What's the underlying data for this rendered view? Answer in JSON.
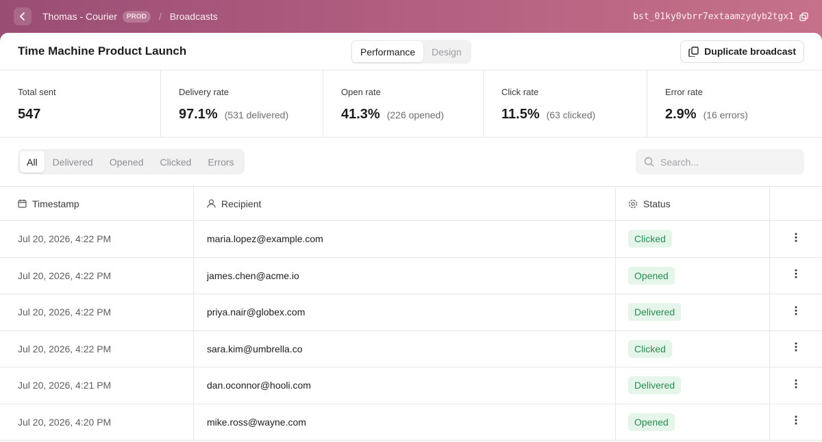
{
  "header": {
    "workspace": "Thomas - Courier",
    "env": "PROD",
    "section": "Broadcasts",
    "broadcast_id": "bst_01ky0vbrr7extaamzydyb2tgx1"
  },
  "title": "Time Machine Product Launch",
  "view_tabs": [
    "Performance",
    "Design"
  ],
  "duplicate_button": "Duplicate broadcast",
  "stats": [
    {
      "label": "Total sent",
      "value": "547"
    },
    {
      "label": "Delivery rate",
      "value": "97.1%",
      "detail": "(531 delivered)"
    },
    {
      "label": "Open rate",
      "value": "41.3%",
      "detail": "(226 opened)"
    },
    {
      "label": "Click rate",
      "value": "11.5%",
      "detail": "(63 clicked)"
    },
    {
      "label": "Error rate",
      "value": "2.9%",
      "detail": "(16 errors)"
    }
  ],
  "filters": [
    "All",
    "Delivered",
    "Opened",
    "Clicked",
    "Errors"
  ],
  "search_placeholder": "Search...",
  "table": {
    "columns": [
      "Timestamp",
      "Recipient",
      "Status"
    ],
    "rows": [
      [
        "Jul 20, 2026, 4:22 PM",
        "maria.lopez@example.com",
        "Clicked"
      ],
      [
        "Jul 20, 2026, 4:22 PM",
        "james.chen@acme.io",
        "Opened"
      ],
      [
        "Jul 20, 2026, 4:22 PM",
        "priya.nair@globex.com",
        "Delivered"
      ],
      [
        "Jul 20, 2026, 4:22 PM",
        "sara.kim@umbrella.co",
        "Clicked"
      ],
      [
        "Jul 20, 2026, 4:21 PM",
        "dan.oconnor@hooli.com",
        "Delivered"
      ],
      [
        "Jul 20, 2026, 4:20 PM",
        "mike.ross@wayne.com",
        "Opened"
      ]
    ]
  }
}
